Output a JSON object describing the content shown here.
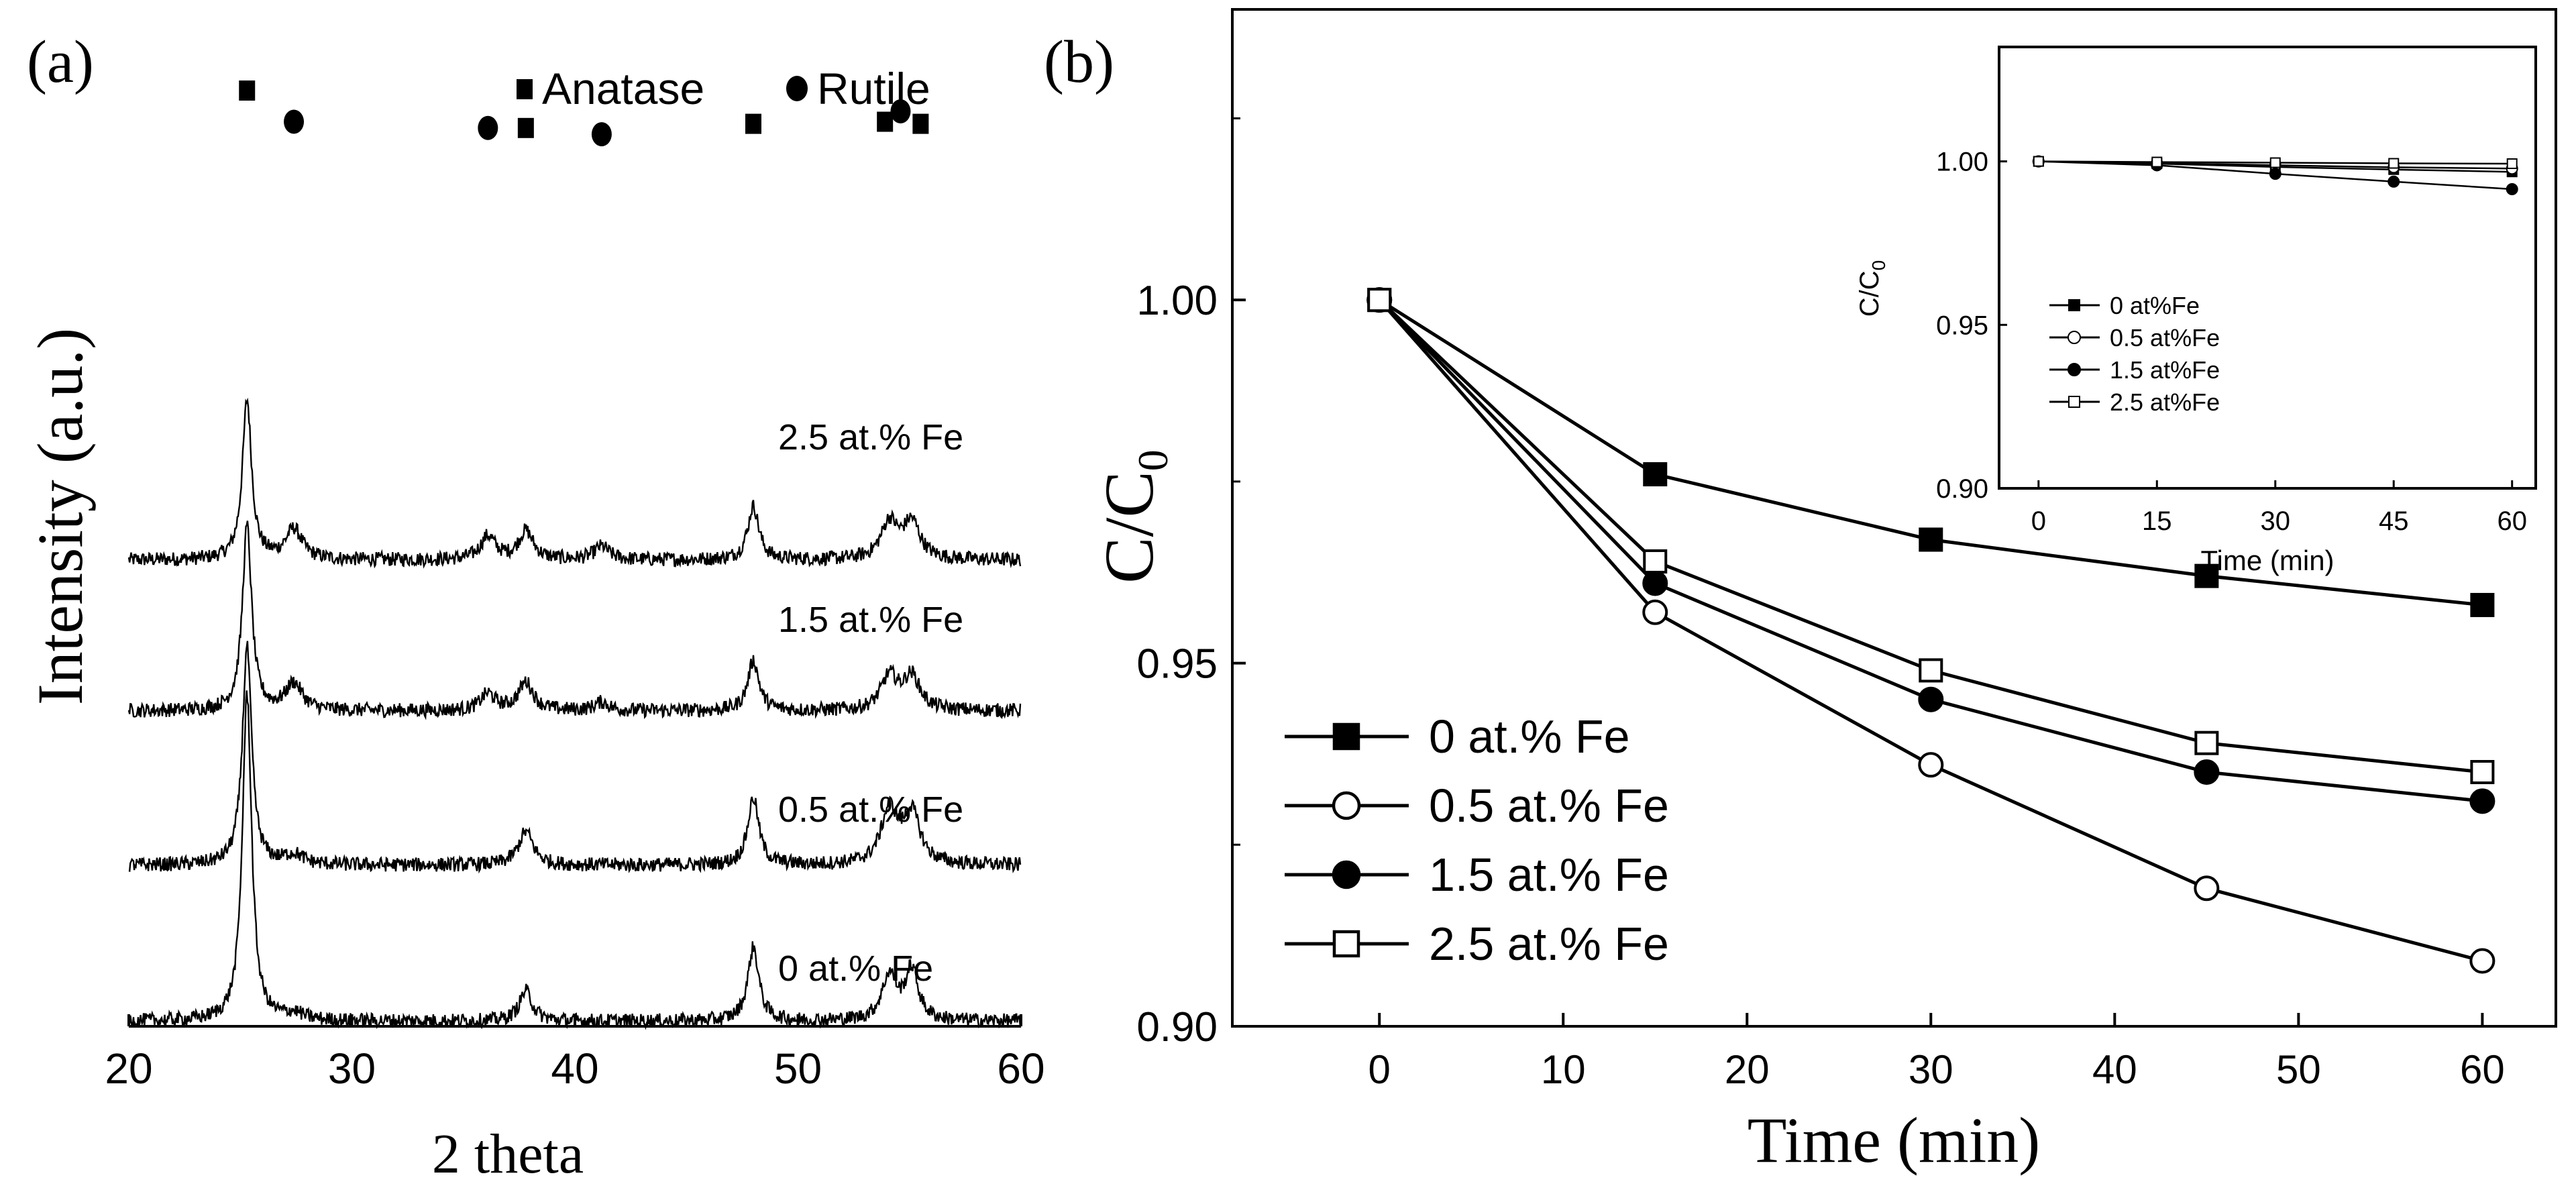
{
  "chart_data": [
    {
      "id": "a",
      "panel_label": "(a)",
      "type": "line",
      "title": "",
      "xlabel": "2 theta",
      "ylabel": "Intensity (a.u.)",
      "xlim": [
        20,
        60
      ],
      "xticks": [
        "20",
        "30",
        "40",
        "50",
        "60"
      ],
      "legend": [
        {
          "marker": "square",
          "label": "Anatase"
        },
        {
          "marker": "circle",
          "label": "Rutile"
        }
      ],
      "series": [
        {
          "name": "2.5 at.% Fe",
          "baseline": 2.2,
          "peaks": [
            [
              25.3,
              0.95,
              0.25
            ],
            [
              27.4,
              0.18,
              0.45
            ],
            [
              36.1,
              0.14,
              0.4
            ],
            [
              37.8,
              0.17,
              0.4
            ],
            [
              41.2,
              0.08,
              0.4
            ],
            [
              48.0,
              0.32,
              0.3
            ],
            [
              54.1,
              0.22,
              0.45
            ],
            [
              55.1,
              0.22,
              0.45
            ]
          ]
        },
        {
          "name": "1.5 at.% Fe",
          "baseline": 1.3,
          "peaks": [
            [
              25.3,
              1.1,
              0.25
            ],
            [
              27.4,
              0.16,
              0.45
            ],
            [
              36.1,
              0.1,
              0.4
            ],
            [
              37.8,
              0.17,
              0.4
            ],
            [
              41.2,
              0.05,
              0.4
            ],
            [
              48.0,
              0.3,
              0.3
            ],
            [
              54.1,
              0.2,
              0.45
            ],
            [
              55.1,
              0.2,
              0.45
            ]
          ]
        },
        {
          "name": "0.5 at.% Fe",
          "baseline": 0.38,
          "peaks": [
            [
              25.3,
              1.3,
              0.25
            ],
            [
              27.4,
              0.06,
              0.5
            ],
            [
              37.8,
              0.2,
              0.4
            ],
            [
              48.0,
              0.4,
              0.3
            ],
            [
              54.1,
              0.32,
              0.45
            ],
            [
              55.1,
              0.3,
              0.45
            ]
          ]
        },
        {
          "name": "0 at.% Fe",
          "baseline": -0.55,
          "peaks": [
            [
              25.3,
              1.95,
              0.25
            ],
            [
              27.4,
              0.04,
              0.5
            ],
            [
              37.8,
              0.18,
              0.35
            ],
            [
              48.0,
              0.44,
              0.3
            ],
            [
              54.1,
              0.27,
              0.4
            ],
            [
              55.1,
              0.3,
              0.35
            ]
          ]
        }
      ],
      "phase_markers": [
        {
          "x": 25.3,
          "level": 1.0,
          "marker": "square"
        },
        {
          "x": 27.4,
          "level": 0.85,
          "marker": "circle"
        },
        {
          "x": 36.1,
          "level": 0.82,
          "marker": "circle"
        },
        {
          "x": 37.8,
          "level": 0.82,
          "marker": "square"
        },
        {
          "x": 41.2,
          "level": 0.79,
          "marker": "circle"
        },
        {
          "x": 48.0,
          "level": 0.84,
          "marker": "square"
        },
        {
          "x": 53.9,
          "level": 0.85,
          "marker": "square"
        },
        {
          "x": 54.6,
          "level": 0.9,
          "marker": "circle"
        },
        {
          "x": 55.5,
          "level": 0.84,
          "marker": "square"
        }
      ]
    },
    {
      "id": "b",
      "panel_label": "(b)",
      "type": "line",
      "title": "",
      "xlabel": "Time (min)",
      "ylabel": "C/C",
      "ylabel_subscript": "0",
      "xlim": [
        -8,
        64
      ],
      "ylim": [
        0.9,
        1.04
      ],
      "xticks": [
        0,
        10,
        20,
        30,
        40,
        50,
        60
      ],
      "yticks": [
        0.9,
        0.95,
        1.0
      ],
      "ytick_labels": [
        "0.90",
        "0.95",
        "1.00"
      ],
      "legend_position": "bottom-left",
      "series": [
        {
          "name": "0 at.% Fe",
          "marker": "filled-square",
          "x": [
            0,
            15,
            30,
            45,
            60
          ],
          "y": [
            1.0,
            0.976,
            0.967,
            0.962,
            0.958
          ]
        },
        {
          "name": "0.5 at.% Fe",
          "marker": "open-circle",
          "x": [
            0,
            15,
            30,
            45,
            60
          ],
          "y": [
            1.0,
            0.957,
            0.936,
            0.919,
            0.909
          ]
        },
        {
          "name": "1.5 at.% Fe",
          "marker": "filled-circle",
          "x": [
            0,
            15,
            30,
            45,
            60
          ],
          "y": [
            1.0,
            0.961,
            0.945,
            0.935,
            0.931
          ]
        },
        {
          "name": "2.5 at.% Fe",
          "marker": "open-square",
          "x": [
            0,
            15,
            30,
            45,
            60
          ],
          "y": [
            1.0,
            0.964,
            0.949,
            0.939,
            0.935
          ]
        }
      ]
    },
    {
      "id": "b-inset",
      "type": "line",
      "title": "",
      "xlabel": "Time (min)",
      "ylabel": "C/C",
      "ylabel_subscript": "0",
      "xlim": [
        -5,
        63
      ],
      "ylim": [
        0.9,
        1.035
      ],
      "xticks": [
        0,
        15,
        30,
        45,
        60
      ],
      "yticks": [
        0.9,
        0.95,
        1.0
      ],
      "ytick_labels": [
        "0.90",
        "0.95",
        "1.00"
      ],
      "legend_position": "center-left",
      "series": [
        {
          "name": "0 at%Fe",
          "marker": "filled-square",
          "x": [
            0,
            15,
            30,
            45,
            60
          ],
          "y": [
            1.0,
            0.9993,
            0.9983,
            0.9975,
            0.9968
          ]
        },
        {
          "name": "0.5 at%Fe",
          "marker": "open-circle",
          "x": [
            0,
            15,
            30,
            45,
            60
          ],
          "y": [
            1.0,
            0.9995,
            0.9988,
            0.9982,
            0.9978
          ]
        },
        {
          "name": "1.5 at%Fe",
          "marker": "filled-circle",
          "x": [
            0,
            15,
            30,
            45,
            60
          ],
          "y": [
            1.0,
            0.9988,
            0.9962,
            0.9938,
            0.9915
          ]
        },
        {
          "name": "2.5 at%Fe",
          "marker": "open-square",
          "x": [
            0,
            15,
            30,
            45,
            60
          ],
          "y": [
            1.0,
            0.9998,
            0.9996,
            0.9994,
            0.9993
          ]
        }
      ]
    }
  ]
}
